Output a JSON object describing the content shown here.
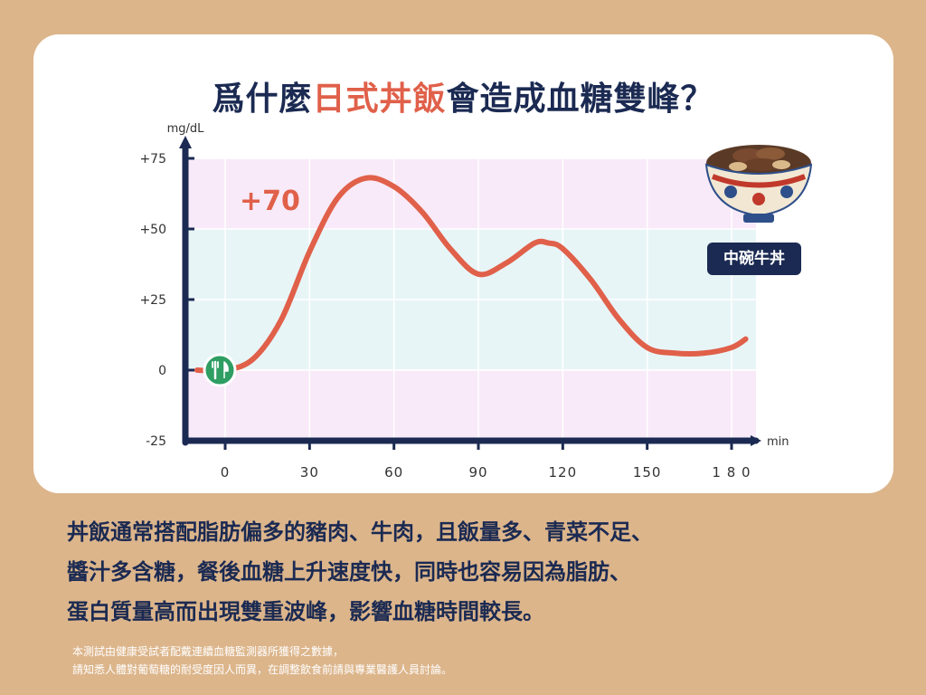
{
  "title": {
    "part1": "爲什麼",
    "highlight": "日式丼飯",
    "part2": "會造成血糖雙峰？"
  },
  "chart_data": {
    "type": "line",
    "ylabel": "mg/dL",
    "xlabel": "min",
    "xlim": [
      -12,
      185
    ],
    "ylim": [
      -25,
      75
    ],
    "x_ticks": [
      0,
      30,
      60,
      90,
      120,
      150,
      180
    ],
    "x_tick_labels": [
      "0",
      "30",
      "60",
      "90",
      "120",
      "150",
      "1 8 0"
    ],
    "y_ticks": [
      75,
      50,
      25,
      0,
      -25
    ],
    "y_tick_labels": [
      "+75",
      "+50",
      "+25",
      "0",
      "-25"
    ],
    "bands": [
      {
        "from": 50,
        "to": 75,
        "color": "#f8eaf8"
      },
      {
        "from": 0,
        "to": 50,
        "color": "#e8f5f7"
      },
      {
        "from": -25,
        "to": 0,
        "color": "#f8eaf8"
      }
    ],
    "series": [
      {
        "color": "#e0604a",
        "x": [
          -10,
          0,
          10,
          20,
          30,
          40,
          50,
          60,
          70,
          80,
          90,
          100,
          110,
          115,
          120,
          130,
          140,
          150,
          160,
          170,
          180,
          185
        ],
        "y": [
          0,
          0,
          4,
          18,
          42,
          61,
          68,
          65,
          56,
          43,
          34,
          38,
          45,
          45,
          43,
          32,
          18,
          8,
          6,
          6,
          8,
          11
        ]
      }
    ],
    "annotation": {
      "text": "+70"
    },
    "start_marker": {
      "icon": "fork-knife-icon"
    }
  },
  "bowl": {
    "label": "中碗牛丼"
  },
  "body": {
    "lines": [
      "丼飯通常搭配脂肪偏多的豬肉、牛肉，且飯量多、青菜不足、",
      "醬汁多含糖，餐後血糖上升速度快，同時也容易因為脂肪、",
      "蛋白質量高而出現雙重波峰，影響血糖時間較長。"
    ]
  },
  "note": {
    "lines": [
      "本測試由健康受試者配戴連續血糖監測器所獲得之數據，",
      "請知悉人體對葡萄糖的耐受度因人而異，在調整飲食前請與專業醫護人員討論。"
    ]
  },
  "colors": {
    "navy": "#1b2a52",
    "accent": "#e0604a",
    "background": "#dcb58b"
  }
}
